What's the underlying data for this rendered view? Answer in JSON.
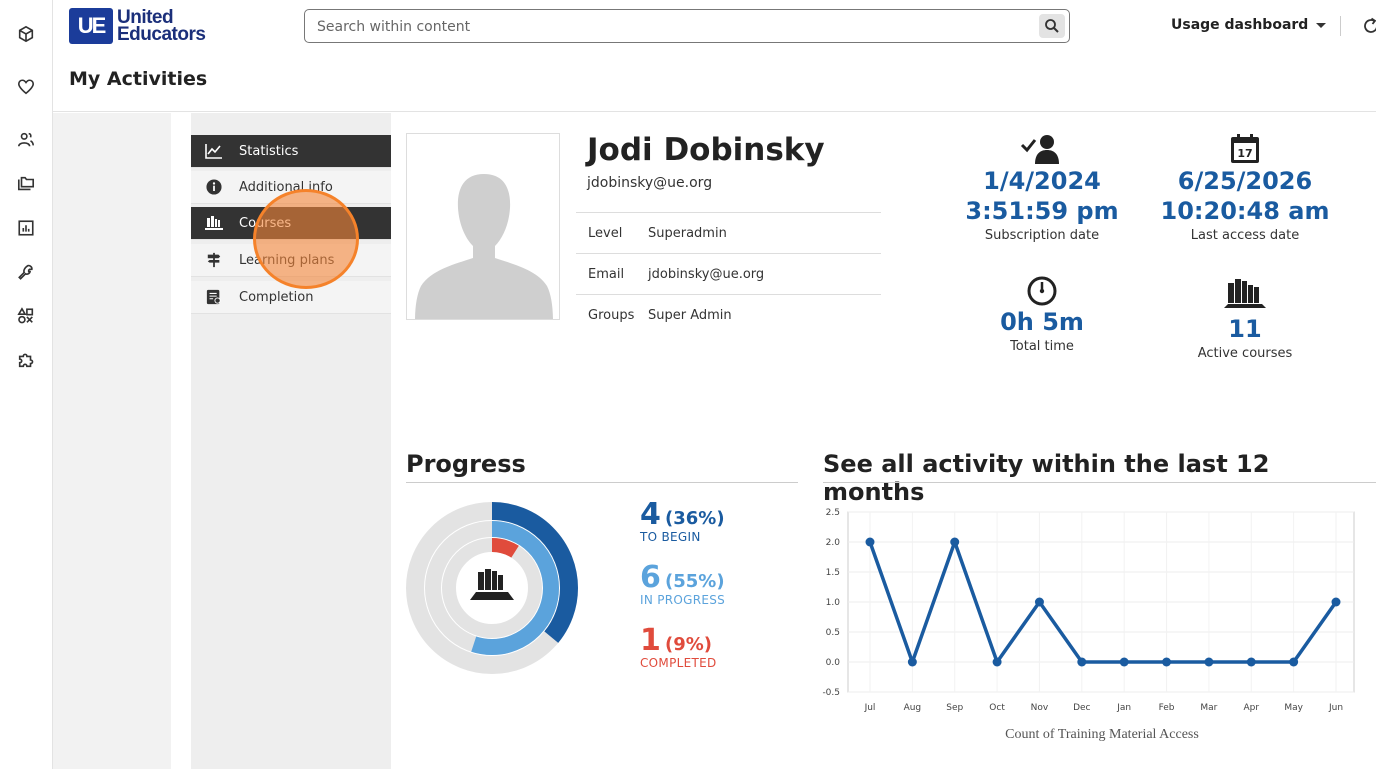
{
  "rail": {
    "icons": [
      "cube-icon",
      "heart-icon",
      "users-icon",
      "folders-icon",
      "chart-icon",
      "wrench-icon",
      "shapes-icon",
      "puzzle-icon"
    ]
  },
  "header": {
    "logo_mark": "UE",
    "logo_line1": "United",
    "logo_line2": "Educators",
    "search_placeholder": "Search within content",
    "usage_label": "Usage dashboard",
    "page_title": "My Activities"
  },
  "menu": {
    "items": [
      {
        "label": "Statistics",
        "icon": "line-chart-icon",
        "active": true
      },
      {
        "label": "Additional info",
        "icon": "info-icon",
        "active": false
      },
      {
        "label": "Courses",
        "icon": "books-icon",
        "active": true
      },
      {
        "label": "Learning plans",
        "icon": "signpost-icon",
        "active": false
      },
      {
        "label": "Completion",
        "icon": "certificate-icon",
        "active": false
      }
    ]
  },
  "profile": {
    "name": "Jodi Dobinsky",
    "email": "jdobinsky@ue.org",
    "rows": [
      {
        "key": "Level",
        "value": "Superadmin"
      },
      {
        "key": "Email",
        "value": "jdobinsky@ue.org"
      },
      {
        "key": "Groups",
        "value": "Super Admin"
      }
    ]
  },
  "stats": {
    "subscription": {
      "date": "1/4/2024",
      "time": "3:51:59 pm",
      "label": "Subscription date"
    },
    "last_access": {
      "date": "6/25/2026",
      "time": "10:20:48 am",
      "label": "Last access date",
      "calendar_day": "17"
    },
    "total_time": {
      "value": "0h 5m",
      "label": "Total time"
    },
    "active_courses": {
      "value": "11",
      "label": "Active courses"
    }
  },
  "progress": {
    "title": "Progress",
    "to_begin": {
      "count": "4",
      "pct": "(36%)",
      "label": "TO BEGIN",
      "value": 36
    },
    "in_progress": {
      "count": "6",
      "pct": "(55%)",
      "label": "IN PROGRESS",
      "value": 55
    },
    "completed": {
      "count": "1",
      "pct": "(9%)",
      "label": "COMPLETED",
      "value": 9
    },
    "colors": {
      "to_begin": "#1a5ba0",
      "in_progress": "#5ba3dc",
      "completed": "#e04b3c",
      "track": "#e3e3e3"
    }
  },
  "activity": {
    "title": "See all activity within the last 12 months"
  },
  "chart_data": {
    "type": "line",
    "categories": [
      "Jul",
      "Aug",
      "Sep",
      "Oct",
      "Nov",
      "Dec",
      "Jan",
      "Feb",
      "Mar",
      "Apr",
      "May",
      "Jun"
    ],
    "series": [
      {
        "name": "",
        "values": [
          2,
          0,
          2,
          0,
          1,
          0,
          0,
          0,
          0,
          0,
          0,
          1
        ]
      }
    ],
    "title": "",
    "xlabel": "Count of Training Material Access",
    "ylabel": "",
    "ylim": [
      -0.5,
      2.5
    ],
    "yticks": [
      "2.5",
      "2.0",
      "1.5",
      "1.0",
      "0.5",
      "0.0",
      "-0.5"
    ],
    "grid": true,
    "color": "#1a5ba0"
  }
}
